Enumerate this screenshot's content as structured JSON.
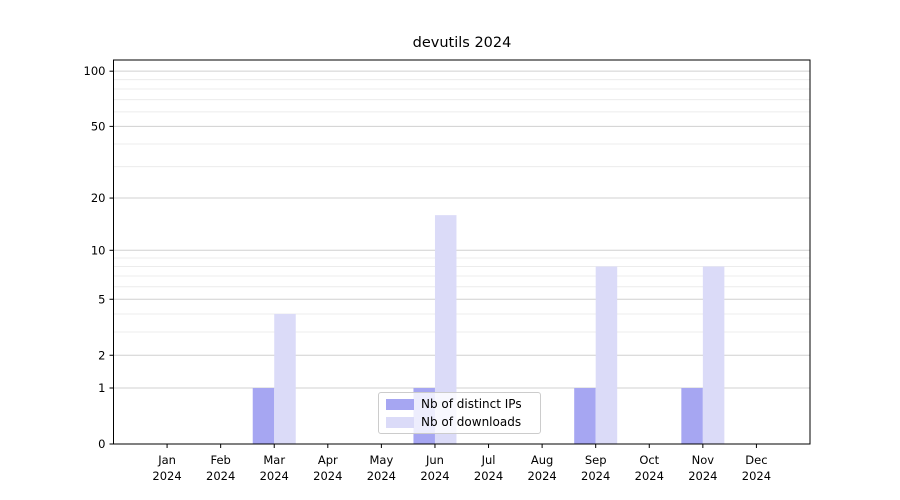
{
  "chart_data": {
    "type": "bar",
    "title": "devutils 2024",
    "categories": [
      "Jan 2024",
      "Feb 2024",
      "Mar 2024",
      "Apr 2024",
      "May 2024",
      "Jun 2024",
      "Jul 2024",
      "Aug 2024",
      "Sep 2024",
      "Oct 2024",
      "Nov 2024",
      "Dec 2024"
    ],
    "series": [
      {
        "name": "Nb of distinct IPs",
        "color": "#a6a6f2",
        "values": [
          0,
          0,
          1,
          0,
          0,
          1,
          0,
          0,
          1,
          0,
          1,
          0
        ]
      },
      {
        "name": "Nb of downloads",
        "color": "#dbdbf8",
        "values": [
          0,
          0,
          4,
          0,
          0,
          16,
          0,
          0,
          8,
          0,
          8,
          0
        ]
      }
    ],
    "xlabel": "",
    "ylabel": "",
    "yscale": "log1p",
    "ylim": [
      0,
      115
    ],
    "yticks": [
      0,
      1,
      2,
      5,
      10,
      20,
      50,
      100
    ],
    "minor_yticks": [
      3,
      4,
      6,
      7,
      8,
      9,
      30,
      40,
      60,
      70,
      80,
      90
    ],
    "grid": true,
    "legend_position": "lower center, inside axes"
  },
  "colors": {
    "grid_major": "#d0d0d0",
    "grid_minor": "#ececec",
    "spine": "#000000",
    "background": "#ffffff"
  }
}
